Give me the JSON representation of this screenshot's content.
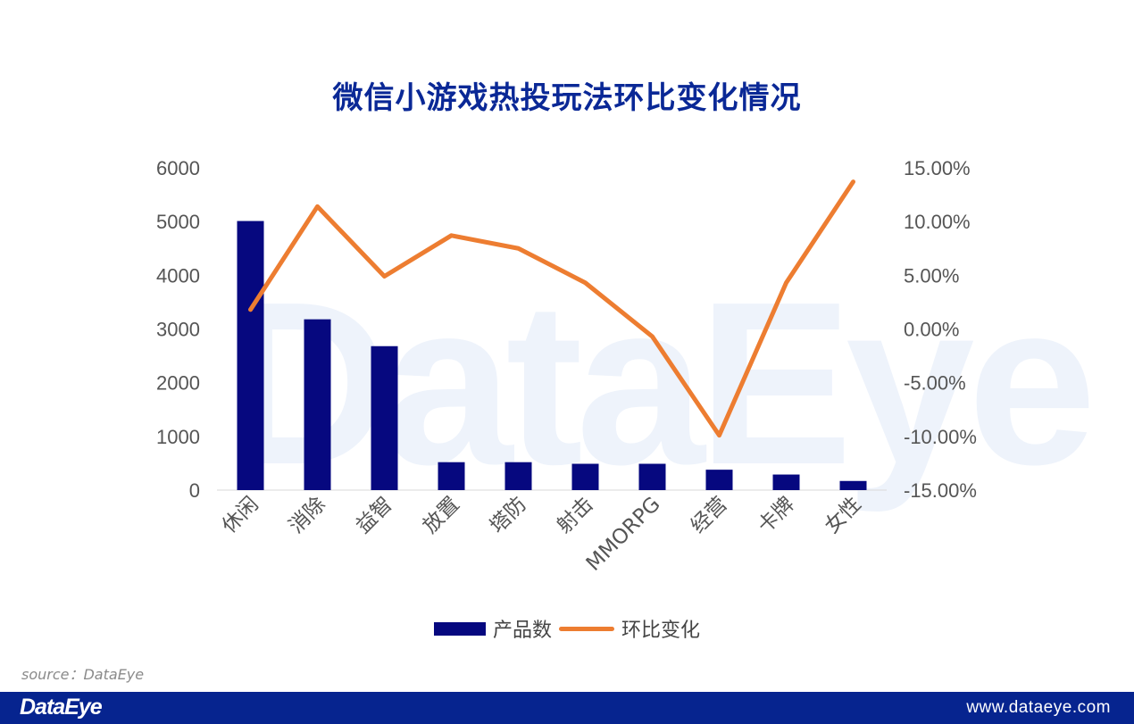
{
  "title": "微信小游戏热投玩法环比变化情况",
  "watermark": "DataEye",
  "source": "source：DataEye",
  "footer": {
    "logo": "DataEye",
    "url": "www.dataeye.com"
  },
  "colors": {
    "title": "#0a2896",
    "bar": "#06087f",
    "line": "#ed7d31",
    "footer": "#06248f"
  },
  "chart_data": {
    "type": "bar",
    "categories": [
      "休闲",
      "消除",
      "益智",
      "放置",
      "塔防",
      "射击",
      "MMORPG",
      "经营",
      "卡牌",
      "女性"
    ],
    "series": [
      {
        "name": "产品数",
        "type": "bar",
        "axis": "left",
        "values": [
          5010,
          3180,
          2680,
          520,
          520,
          490,
          490,
          380,
          290,
          170
        ]
      },
      {
        "name": "环比变化",
        "type": "line",
        "axis": "right",
        "unit": "%",
        "values": [
          1.8,
          11.4,
          4.9,
          8.7,
          7.5,
          4.3,
          -0.7,
          -9.9,
          4.3,
          13.7
        ]
      }
    ],
    "y_left": {
      "min": 0,
      "max": 6000,
      "ticks": [
        "0",
        "1000",
        "2000",
        "3000",
        "4000",
        "5000",
        "6000"
      ]
    },
    "y_right": {
      "min": -15,
      "max": 15,
      "ticks": [
        "-15.00%",
        "-10.00%",
        "-5.00%",
        "0.00%",
        "5.00%",
        "10.00%",
        "15.00%"
      ]
    },
    "grid": false,
    "legend": "bottom-center"
  }
}
